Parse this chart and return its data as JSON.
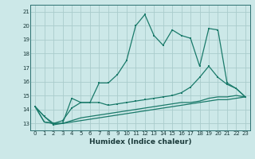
{
  "xlabel": "Humidex (Indice chaleur)",
  "ylabel": "",
  "background_color": "#cce8e8",
  "grid_color": "#aacccc",
  "line_color": "#1a7a6a",
  "x_data": [
    0,
    1,
    2,
    3,
    4,
    5,
    6,
    7,
    8,
    9,
    10,
    11,
    12,
    13,
    14,
    15,
    16,
    17,
    18,
    19,
    20,
    21,
    22,
    23
  ],
  "series1": [
    14.2,
    13.5,
    12.9,
    13.0,
    14.8,
    14.5,
    14.5,
    15.9,
    15.9,
    16.5,
    17.5,
    20.0,
    20.8,
    19.3,
    18.6,
    19.7,
    19.3,
    19.1,
    17.1,
    19.8,
    19.7,
    15.9,
    15.5,
    14.9
  ],
  "series2": [
    14.2,
    13.5,
    13.0,
    13.2,
    14.1,
    14.5,
    14.5,
    14.5,
    14.3,
    14.4,
    14.5,
    14.6,
    14.7,
    14.8,
    14.9,
    15.0,
    15.2,
    15.6,
    16.3,
    17.1,
    16.3,
    15.8,
    15.5,
    14.9
  ],
  "series3": [
    14.2,
    13.1,
    13.0,
    13.0,
    13.2,
    13.4,
    13.5,
    13.6,
    13.7,
    13.8,
    13.9,
    14.0,
    14.1,
    14.2,
    14.3,
    14.4,
    14.5,
    14.5,
    14.6,
    14.8,
    14.9,
    14.9,
    15.0,
    14.9
  ],
  "series4": [
    14.2,
    13.1,
    13.0,
    13.0,
    13.1,
    13.2,
    13.3,
    13.4,
    13.5,
    13.6,
    13.7,
    13.8,
    13.9,
    14.0,
    14.1,
    14.2,
    14.3,
    14.4,
    14.5,
    14.6,
    14.7,
    14.7,
    14.8,
    14.9
  ],
  "ylim": [
    12.5,
    21.5
  ],
  "yticks": [
    13,
    14,
    15,
    16,
    17,
    18,
    19,
    20,
    21
  ],
  "xticks": [
    0,
    1,
    2,
    3,
    4,
    5,
    6,
    7,
    8,
    9,
    10,
    11,
    12,
    13,
    14,
    15,
    16,
    17,
    18,
    19,
    20,
    21,
    22,
    23
  ],
  "tick_fontsize": 5.0,
  "xlabel_fontsize": 6.5
}
